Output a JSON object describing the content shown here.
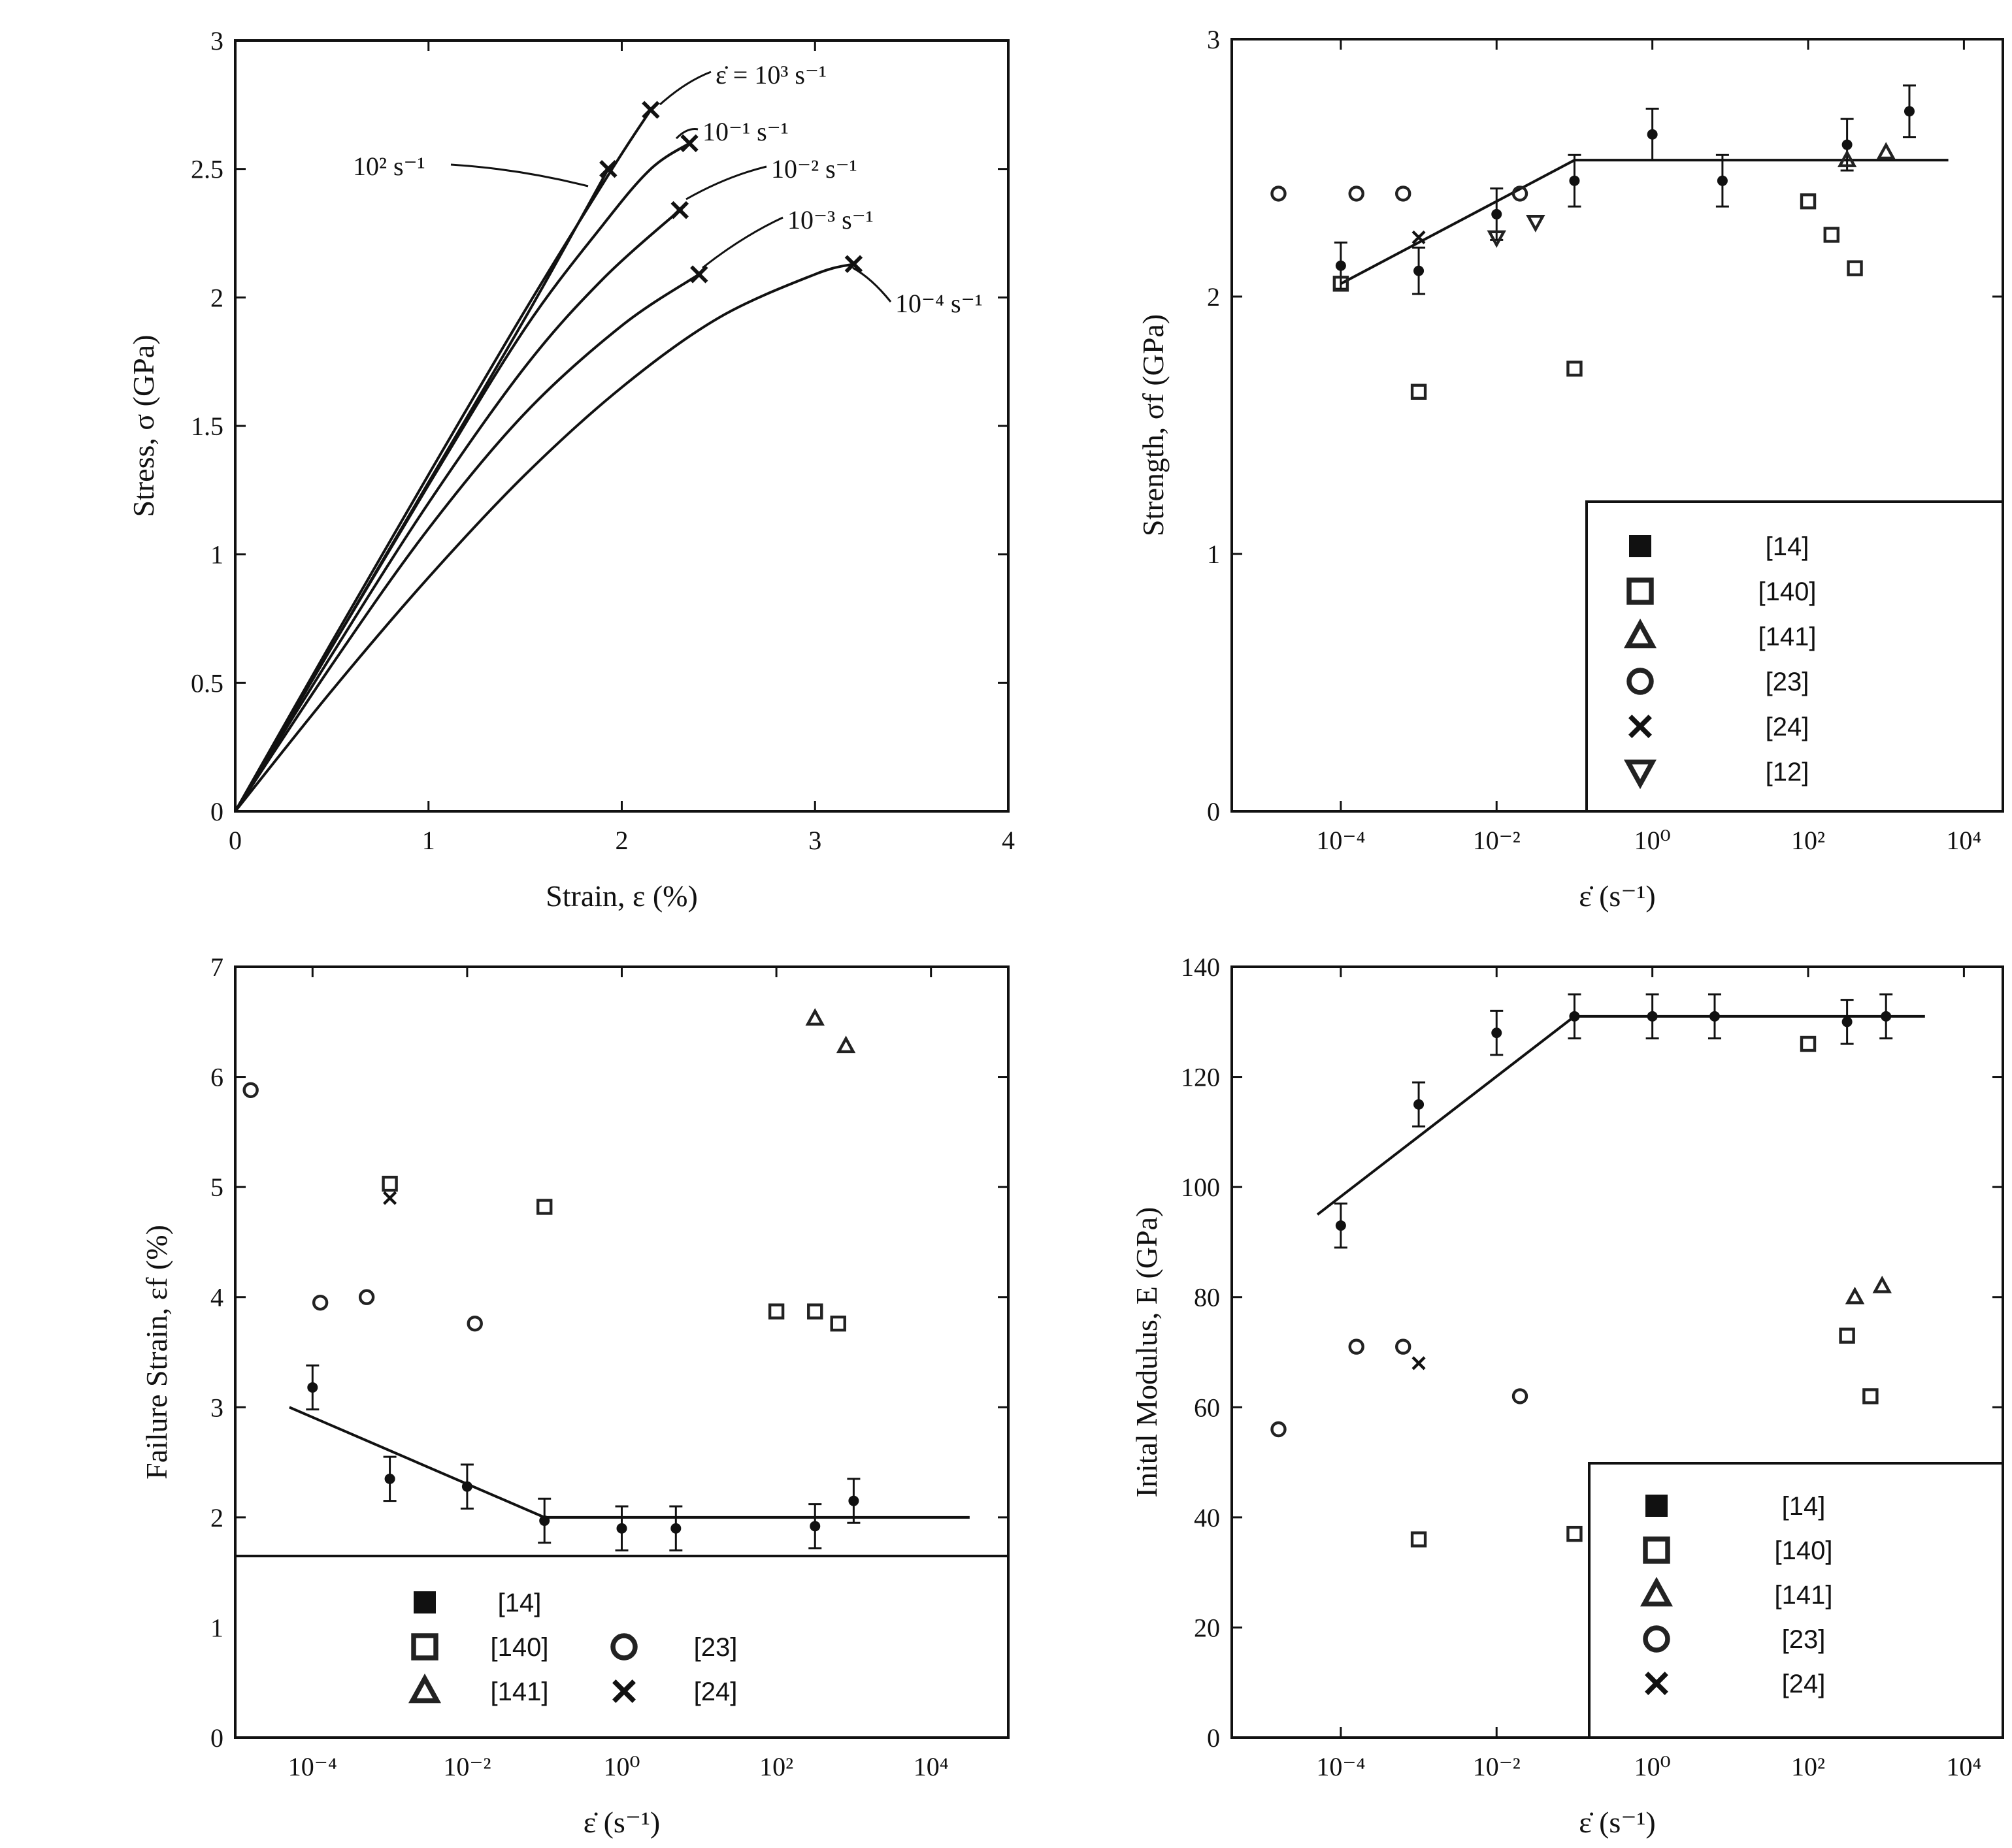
{
  "chart_data": [
    {
      "id": "stress_strain",
      "type": "line",
      "xlabel": "Strain, ε (%)",
      "ylabel": "Stress, σ (GPa)",
      "xlim": [
        0,
        4
      ],
      "ylim": [
        0,
        3
      ],
      "xticks": [
        0,
        1,
        2,
        3,
        4
      ],
      "yticks": [
        0,
        0.5,
        1,
        1.5,
        2,
        2.5,
        3
      ],
      "grid": false,
      "series": [
        {
          "name": "ε̇ = 10³ s⁻¹",
          "label_text": "ε̇ = 10³ s⁻¹",
          "x": [
            0,
            0.5,
            1.0,
            1.5,
            1.95,
            2.15
          ],
          "y": [
            0,
            0.66,
            1.31,
            1.95,
            2.5,
            2.73
          ]
        },
        {
          "name": "10² s⁻¹",
          "label_text": "10² s⁻¹",
          "x": [
            0,
            0.5,
            1.0,
            1.5,
            1.93
          ],
          "y": [
            0,
            0.64,
            1.28,
            1.92,
            2.5
          ]
        },
        {
          "name": "10⁻¹ s⁻¹",
          "label_text": "10⁻¹ s⁻¹",
          "x": [
            0,
            0.5,
            1.0,
            1.5,
            1.9,
            2.15,
            2.35
          ],
          "y": [
            0,
            0.64,
            1.27,
            1.88,
            2.28,
            2.5,
            2.6
          ]
        },
        {
          "name": "10⁻² s⁻¹",
          "label_text": "10⁻² s⁻¹",
          "x": [
            0,
            0.5,
            1.0,
            1.5,
            1.9,
            2.3
          ],
          "y": [
            0,
            0.61,
            1.2,
            1.73,
            2.07,
            2.34
          ]
        },
        {
          "name": "10⁻³ s⁻¹",
          "label_text": "10⁻³ s⁻¹",
          "x": [
            0,
            0.5,
            1.0,
            1.5,
            2.0,
            2.4
          ],
          "y": [
            0,
            0.57,
            1.1,
            1.55,
            1.89,
            2.09
          ]
        },
        {
          "name": "10⁻⁴ s⁻¹",
          "label_text": "10⁻⁴ s⁻¹",
          "x": [
            0,
            0.5,
            1.0,
            1.5,
            2.0,
            2.5,
            3.0,
            3.2
          ],
          "y": [
            0,
            0.47,
            0.91,
            1.31,
            1.65,
            1.92,
            2.09,
            2.13
          ]
        }
      ]
    },
    {
      "id": "strength",
      "type": "scatter",
      "xscale": "log",
      "xlabel": "ε̇ (s⁻¹)",
      "ylabel": "Strength, σf (GPa)",
      "xlim_exp": [
        -5.4,
        4.5
      ],
      "ylim": [
        0,
        3
      ],
      "xticks_exp": [
        -4,
        -2,
        0,
        2,
        4
      ],
      "yticks": [
        0,
        1,
        2,
        3
      ],
      "legend_position": "lower-right",
      "legend": [
        {
          "marker": "filled-square",
          "label": "[14]"
        },
        {
          "marker": "open-square",
          "label": "[140]"
        },
        {
          "marker": "open-triangle",
          "label": "[141]"
        },
        {
          "marker": "open-circle",
          "label": "[23]"
        },
        {
          "marker": "cross",
          "label": "[24]"
        },
        {
          "marker": "down-triangle",
          "label": "[12]"
        }
      ],
      "fit_line": {
        "x_exp": [
          -4,
          -1,
          3.8
        ],
        "y": [
          2.05,
          2.53,
          2.53
        ]
      },
      "series": [
        {
          "name": "[14]",
          "marker": "filled-circle",
          "x_exp": [
            -4,
            -3,
            -2,
            -1,
            0,
            0.9,
            2.5,
            3.3
          ],
          "y": [
            2.12,
            2.1,
            2.32,
            2.45,
            2.63,
            2.45,
            2.59,
            2.72
          ],
          "err": [
            0.09,
            0.09,
            0.1,
            0.1,
            0.1,
            0.1,
            0.1,
            0.1
          ]
        },
        {
          "name": "[140]",
          "marker": "open-square",
          "x_exp": [
            -4,
            -3,
            -1,
            2,
            2.3,
            2.6
          ],
          "y": [
            2.05,
            1.63,
            1.72,
            2.37,
            2.24,
            2.11
          ]
        },
        {
          "name": "[141]",
          "marker": "open-triangle",
          "x_exp": [
            2.5,
            3.0
          ],
          "y": [
            2.53,
            2.56
          ]
        },
        {
          "name": "[23]",
          "marker": "open-circle",
          "x_exp": [
            -4.8,
            -3.8,
            -3.2,
            -1.7
          ],
          "y": [
            2.4,
            2.4,
            2.4,
            2.4
          ]
        },
        {
          "name": "[24]",
          "marker": "cross",
          "x_exp": [
            -3
          ],
          "y": [
            2.23
          ]
        },
        {
          "name": "[12]",
          "marker": "down-triangle",
          "x_exp": [
            -2,
            -1.5
          ],
          "y": [
            2.23,
            2.29
          ]
        }
      ]
    },
    {
      "id": "failure_strain",
      "type": "scatter",
      "xscale": "log",
      "xlabel": "ε̇ (s⁻¹)",
      "ylabel": "Failure Strain, εf (%)",
      "xlim_exp": [
        -5,
        5
      ],
      "ylim": [
        0,
        7
      ],
      "xticks_exp": [
        -4,
        -2,
        0,
        2,
        4
      ],
      "yticks": [
        0,
        1,
        2,
        3,
        4,
        5,
        6,
        7
      ],
      "legend_position": "bottom",
      "legend": [
        {
          "marker": "filled-square",
          "label": "[14]"
        },
        {
          "marker": "open-square",
          "label": "[140]"
        },
        {
          "marker": "open-triangle",
          "label": "[141]"
        },
        {
          "marker": "open-circle",
          "label": "[23]"
        },
        {
          "marker": "cross",
          "label": "[24]"
        }
      ],
      "fit_line": {
        "x_exp": [
          -4.3,
          -1,
          4.5
        ],
        "y": [
          3.0,
          2.0,
          2.0
        ]
      },
      "series": [
        {
          "name": "[14]",
          "marker": "filled-circle",
          "x_exp": [
            -4,
            -3,
            -2,
            -1,
            0,
            0.7,
            2.5,
            3
          ],
          "y": [
            3.18,
            2.35,
            2.28,
            1.97,
            1.9,
            1.9,
            1.92,
            2.15
          ],
          "err": [
            0.2,
            0.2,
            0.2,
            0.2,
            0.2,
            0.2,
            0.2,
            0.2
          ]
        },
        {
          "name": "[140]",
          "marker": "open-square",
          "x_exp": [
            -3,
            -1,
            2,
            2.5,
            2.8
          ],
          "y": [
            5.03,
            4.82,
            3.87,
            3.87,
            3.76
          ]
        },
        {
          "name": "[141]",
          "marker": "open-triangle",
          "x_exp": [
            2.5,
            2.9
          ],
          "y": [
            6.53,
            6.28
          ]
        },
        {
          "name": "[23]",
          "marker": "open-circle",
          "x_exp": [
            -4.8,
            -3.9,
            -3.3,
            -1.9
          ],
          "y": [
            5.88,
            3.95,
            4.0,
            3.76
          ]
        },
        {
          "name": "[24]",
          "marker": "cross",
          "x_exp": [
            -3
          ],
          "y": [
            4.9
          ]
        }
      ]
    },
    {
      "id": "initial_modulus",
      "type": "scatter",
      "xscale": "log",
      "xlabel": "ε̇ (s⁻¹)",
      "ylabel": "Inital Modulus, E (GPa)",
      "xlim_exp": [
        -5.4,
        4.5
      ],
      "ylim": [
        0,
        140
      ],
      "xticks_exp": [
        -4,
        -2,
        0,
        2,
        4
      ],
      "yticks": [
        0,
        20,
        40,
        60,
        80,
        100,
        120,
        140
      ],
      "legend_position": "lower-right",
      "legend": [
        {
          "marker": "filled-square",
          "label": "[14]"
        },
        {
          "marker": "open-square",
          "label": "[140]"
        },
        {
          "marker": "open-triangle",
          "label": "[141]"
        },
        {
          "marker": "open-circle",
          "label": "[23]"
        },
        {
          "marker": "cross",
          "label": "[24]"
        }
      ],
      "fit_line": {
        "x_exp": [
          -4.3,
          -1,
          3.5
        ],
        "y": [
          95,
          131,
          131
        ]
      },
      "series": [
        {
          "name": "[14]",
          "marker": "filled-circle",
          "x_exp": [
            -4,
            -3,
            -2,
            -1,
            0,
            0.8,
            2.5,
            3.0
          ],
          "y": [
            93,
            115,
            128,
            131,
            131,
            131,
            130,
            131
          ],
          "err": [
            4,
            4,
            4,
            4,
            4,
            4,
            4,
            4
          ]
        },
        {
          "name": "[140]",
          "marker": "open-square",
          "x_exp": [
            -3,
            -1,
            2,
            2.5,
            2.8
          ],
          "y": [
            36,
            37,
            126,
            73,
            62
          ]
        },
        {
          "name": "[141]",
          "marker": "open-triangle",
          "x_exp": [
            2.6,
            2.95
          ],
          "y": [
            80,
            82
          ]
        },
        {
          "name": "[23]",
          "marker": "open-circle",
          "x_exp": [
            -4.8,
            -3.8,
            -3.2,
            -1.7
          ],
          "y": [
            56,
            71,
            71,
            62
          ]
        },
        {
          "name": "[24]",
          "marker": "cross",
          "x_exp": [
            -3
          ],
          "y": [
            68
          ]
        }
      ]
    }
  ]
}
